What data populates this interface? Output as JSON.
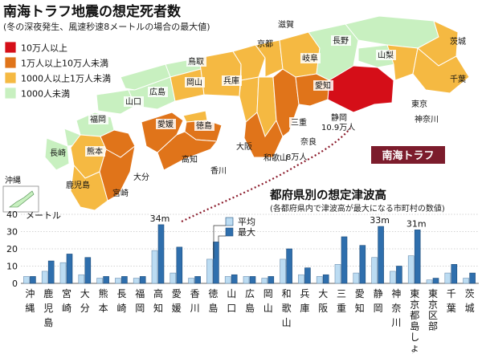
{
  "title": "南海トラフ地震の想定死者数",
  "subtitle": "(冬の深夜発生、風速秒速8メートルの場合の最大値)",
  "colors": {
    "over_100k": "#d50e18",
    "10k_to_100k": "#e0741a",
    "1k_to_10k": "#f5b942",
    "under_1k": "#c8f0c0",
    "bar_average": "#bcdcf2",
    "bar_max": "#2f6fad",
    "trough": "#7c1c2c"
  },
  "legend": [
    {
      "label": "10万人以上",
      "color": "#d50e18"
    },
    {
      "label": "1万人以上10万人未満",
      "color": "#e0741a"
    },
    {
      "label": "1000人以上1万人未満",
      "color": "#f5b942"
    },
    {
      "label": "1000人未満",
      "color": "#c8f0c0"
    }
  ],
  "map": {
    "prefecture_labels": [
      "京都",
      "滋賀",
      "茨城",
      "長野",
      "岐阜",
      "山梨",
      "千葉",
      "鳥取",
      "岡山",
      "兵庫",
      "山口",
      "広島",
      "愛知",
      "福岡",
      "愛媛",
      "徳島",
      "東京",
      "神奈川",
      "三重",
      "静岡",
      "長崎",
      "熊本",
      "高知",
      "大阪",
      "奈良",
      "和歌山",
      "香川",
      "大分",
      "宮崎",
      "鹿児島",
      "沖縄"
    ],
    "notes": [
      "10.9万人",
      "8万人"
    ],
    "trough_label": "南海トラフ"
  },
  "chart_data": {
    "type": "bar",
    "title": "都府県別の想定津波高",
    "subtitle": "(各都府県内で津波高が最大になる市町村の数値)",
    "ylabel": "メートル",
    "ylim": [
      0,
      40
    ],
    "yticks": [
      0,
      10,
      20,
      30,
      40
    ],
    "grid": true,
    "legend": {
      "placement": "top",
      "entries": [
        "平均",
        "最大"
      ]
    },
    "categories": [
      "沖縄",
      "鹿児島",
      "宮崎",
      "大分",
      "熊本",
      "長崎",
      "福岡",
      "高知",
      "愛媛",
      "香川",
      "徳島",
      "山口",
      "広島",
      "岡山",
      "和歌山",
      "兵庫",
      "大阪",
      "三重",
      "愛知",
      "静岡",
      "神奈川",
      "東京都島しょ部",
      "東京区部",
      "千葉",
      "茨城"
    ],
    "series": [
      {
        "name": "平均",
        "values": [
          4,
          7,
          12,
          5,
          3,
          3,
          3,
          19,
          6,
          3,
          14,
          4,
          4,
          3,
          14,
          5,
          4,
          11,
          6,
          15,
          7,
          16,
          2,
          6,
          3
        ]
      },
      {
        "name": "最大",
        "values": [
          4,
          13,
          17,
          15,
          4,
          4,
          4,
          34,
          21,
          4,
          24,
          5,
          4,
          4,
          20,
          9,
          5,
          27,
          22,
          33,
          10,
          31,
          3,
          11,
          6
        ]
      }
    ],
    "annotations": [
      "34m",
      "33m",
      "31m"
    ]
  }
}
